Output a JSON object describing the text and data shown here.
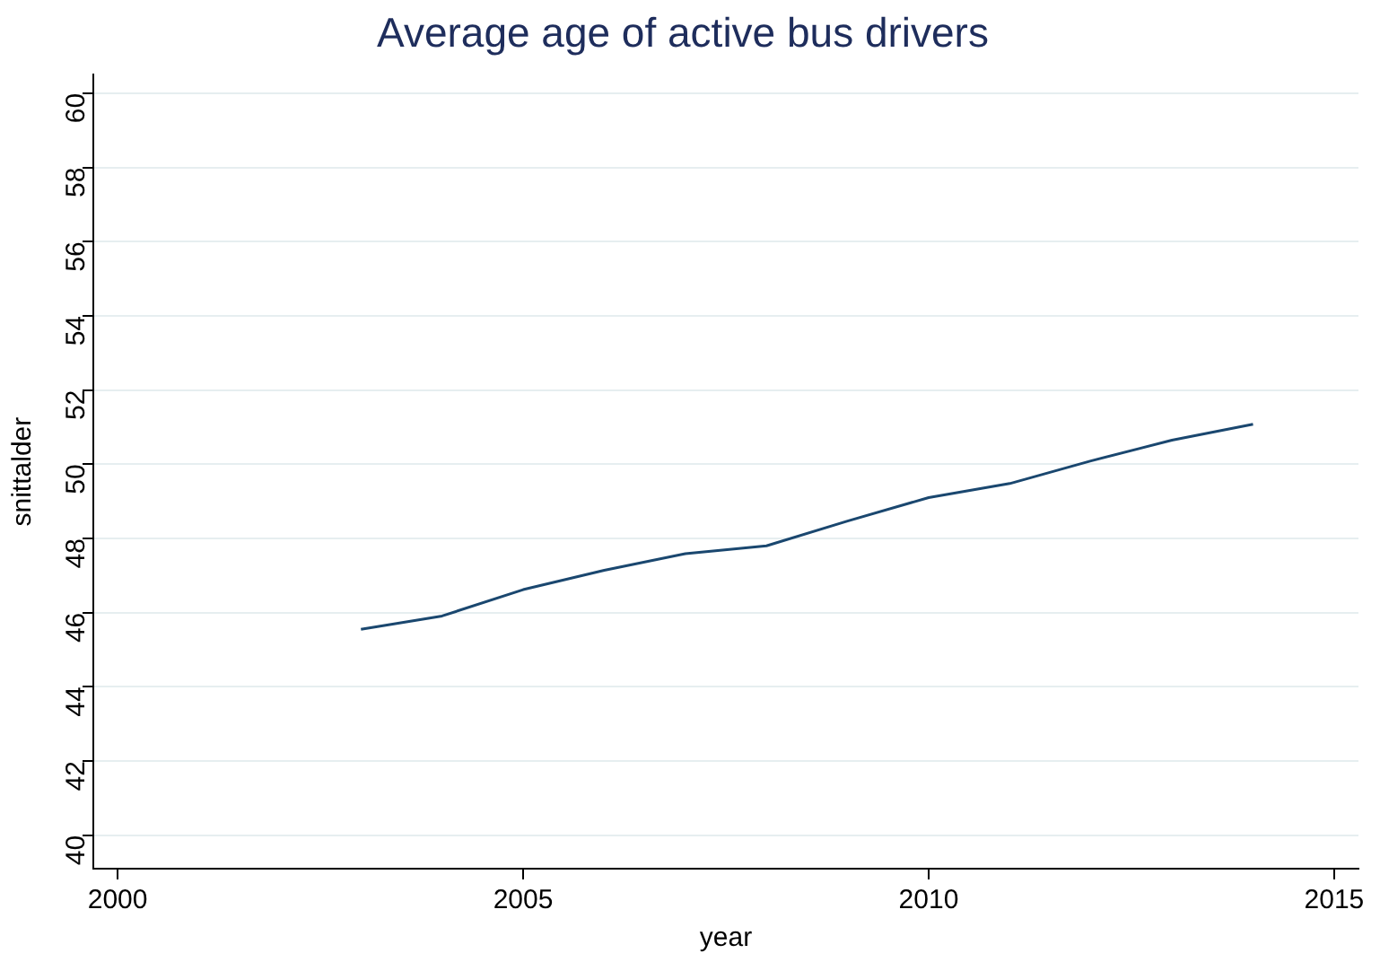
{
  "chart_data": {
    "type": "line",
    "title": "Average age of active bus drivers",
    "xlabel": "year",
    "ylabel": "snittalder",
    "x": [
      2003,
      2004,
      2005,
      2006,
      2007,
      2008,
      2009,
      2010,
      2011,
      2012,
      2013,
      2014
    ],
    "series": [
      {
        "color": "#1a476f",
        "values": [
          45.55,
          45.91,
          46.62,
          47.14,
          47.59,
          47.8,
          48.47,
          49.1,
          49.48,
          50.09,
          50.65,
          51.08
        ]
      }
    ],
    "xlim": [
      1999.7,
      2015.3
    ],
    "xticks": [
      2000,
      2005,
      2010,
      2015
    ],
    "ylim": [
      39.1,
      60.5
    ],
    "yticks": [
      40,
      42,
      44,
      46,
      48,
      50,
      52,
      54,
      56,
      58,
      60
    ],
    "grid": "y",
    "legend": false,
    "marker": "none",
    "line_style": "solid"
  }
}
